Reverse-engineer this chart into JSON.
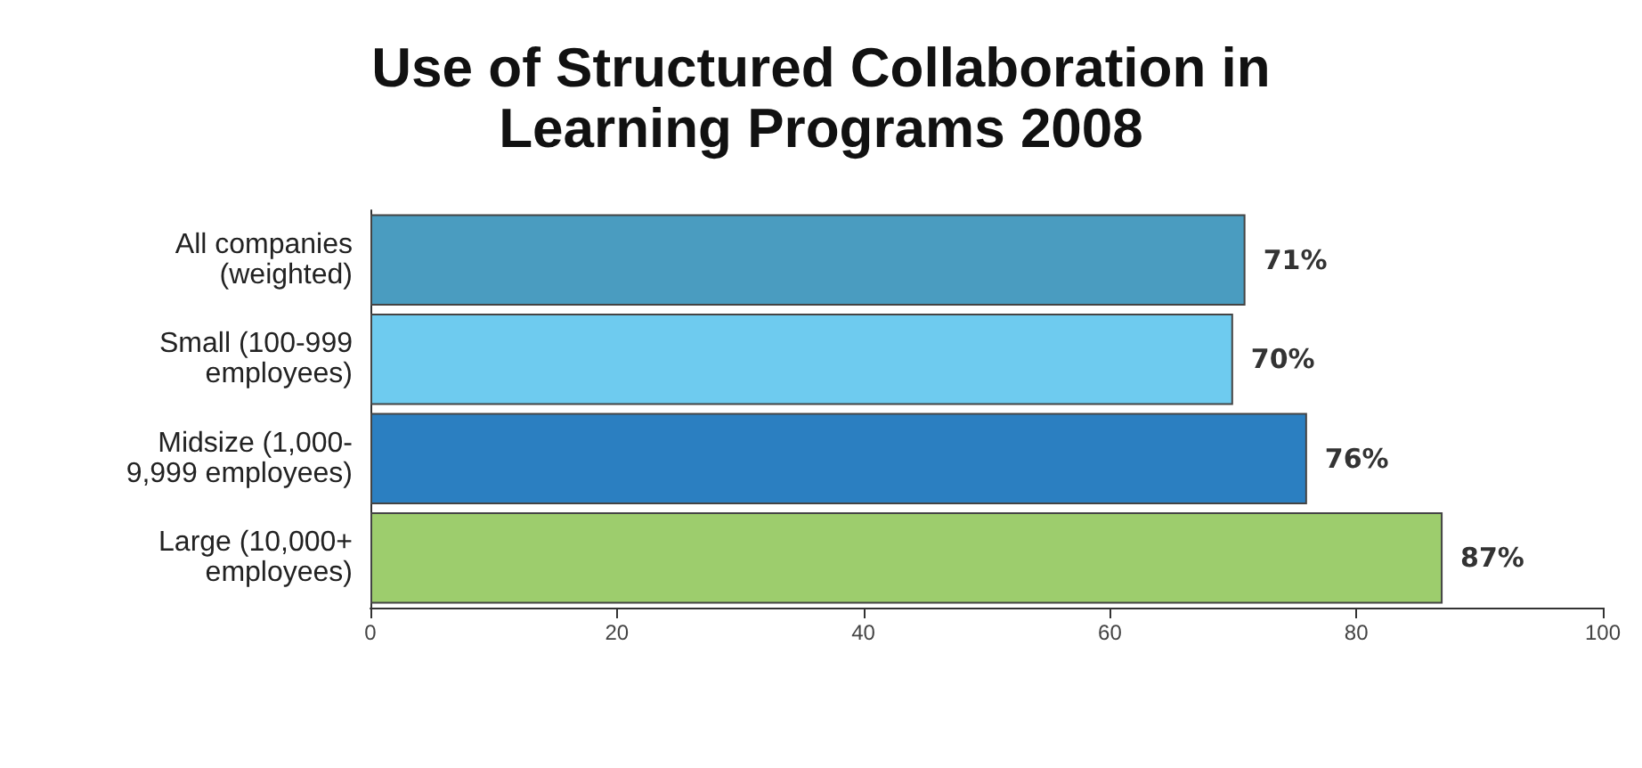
{
  "chart_data": {
    "type": "bar",
    "orientation": "horizontal",
    "title": "Use of Structured Collaboration in\nLearning Programs 2008",
    "categories": [
      "All companies\n(weighted)",
      "Small (100-999\nemployees)",
      "Midsize (1,000-\n9,999 employees)",
      "Large (10,000+\nemployees)"
    ],
    "values": [
      71,
      70,
      76,
      87
    ],
    "colors": [
      "#4a9cc0",
      "#6ecbef",
      "#2b7fc1",
      "#9dcd6d"
    ],
    "value_labels": [
      "71%",
      "70%",
      "76%",
      "87%"
    ],
    "xlim": [
      0,
      100
    ],
    "xticks": [
      0,
      20,
      40,
      60,
      80,
      100
    ],
    "grid": false
  }
}
